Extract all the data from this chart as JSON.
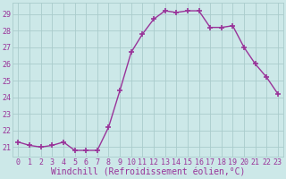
{
  "x": [
    0,
    1,
    2,
    3,
    4,
    5,
    6,
    7,
    8,
    9,
    10,
    11,
    12,
    13,
    14,
    15,
    16,
    17,
    18,
    19,
    20,
    21,
    22,
    23
  ],
  "y": [
    21.3,
    21.1,
    21.0,
    21.1,
    21.3,
    20.8,
    20.8,
    20.8,
    22.2,
    24.4,
    26.7,
    27.8,
    28.7,
    29.2,
    29.1,
    29.2,
    29.2,
    28.2,
    28.2,
    28.3,
    27.0,
    26.0,
    25.2,
    24.2
  ],
  "line_color": "#993399",
  "marker": "+",
  "marker_size": 4,
  "marker_lw": 1.2,
  "bg_color": "#cce8e8",
  "grid_color": "#aacccc",
  "xlabel": "Windchill (Refroidissement éolien,°C)",
  "xlabel_fontsize": 7,
  "ytick_labels": [
    "21",
    "22",
    "23",
    "24",
    "25",
    "26",
    "27",
    "28",
    "29"
  ],
  "ytick_values": [
    21,
    22,
    23,
    24,
    25,
    26,
    27,
    28,
    29
  ],
  "ylim": [
    20.4,
    29.7
  ],
  "xlim": [
    -0.5,
    23.5
  ],
  "xtick_labels": [
    "0",
    "1",
    "2",
    "3",
    "4",
    "5",
    "6",
    "7",
    "8",
    "9",
    "10",
    "11",
    "12",
    "13",
    "14",
    "15",
    "16",
    "17",
    "18",
    "19",
    "20",
    "21",
    "22",
    "23"
  ],
  "tick_fontsize": 6,
  "tick_color": "#993399",
  "line_width": 1.0
}
